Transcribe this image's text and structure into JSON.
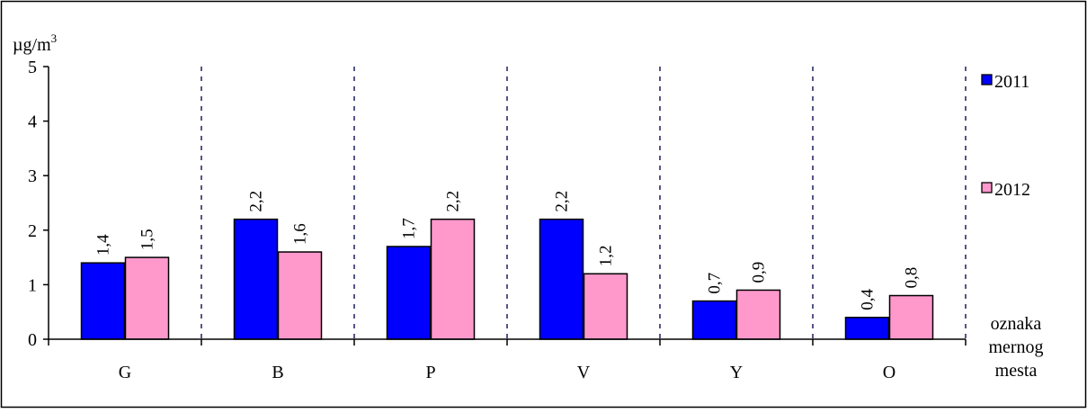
{
  "chart_data": {
    "type": "bar",
    "categories": [
      "G",
      "B",
      "P",
      "V",
      "Y",
      "O"
    ],
    "series": [
      {
        "name": "2011",
        "values": [
          1.4,
          2.2,
          1.7,
          2.2,
          0.7,
          0.4
        ],
        "labels": [
          "1,4",
          "2,2",
          "1,7",
          "2,2",
          "0,7",
          "0,4"
        ],
        "color": "#0000ff"
      },
      {
        "name": "2012",
        "values": [
          1.5,
          1.6,
          2.2,
          1.2,
          0.9,
          0.8
        ],
        "labels": [
          "1,5",
          "1,6",
          "2,2",
          "1,2",
          "0,9",
          "0,8"
        ],
        "color": "#ff99cc"
      }
    ],
    "ylim": [
      0,
      5
    ],
    "yticks": [
      "0",
      "1",
      "2",
      "3",
      "4",
      "5"
    ],
    "ylabel_base": "µg/m",
    "ylabel_sup": "3",
    "xlabel_lines": [
      "oznaka",
      "mernog",
      "mesta"
    ],
    "grid": false,
    "category_separators": "dotted",
    "legend_position": "right"
  }
}
